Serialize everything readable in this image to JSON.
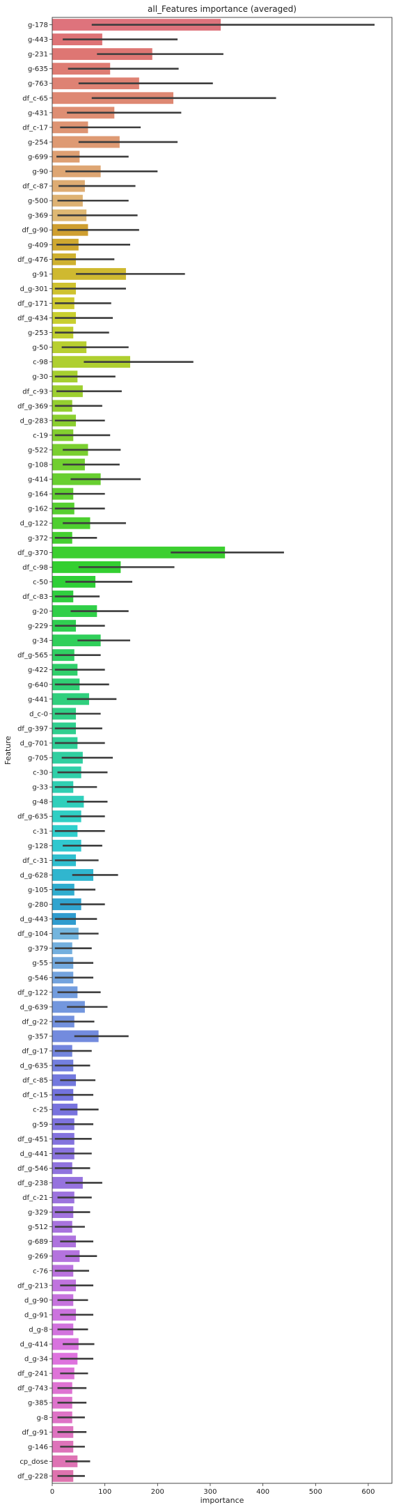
{
  "chart_data": {
    "type": "bar",
    "orientation": "horizontal",
    "title": "all_Features importance (averaged)",
    "xlabel": "importance",
    "ylabel": "Feature",
    "xlim": [
      0,
      645
    ],
    "xticks": [
      0,
      100,
      200,
      300,
      400,
      500,
      600
    ],
    "grid": false,
    "error_bars": true,
    "palette": "husl",
    "bars": [
      {
        "label": "g-178",
        "value": 320,
        "err_lo": 75,
        "err_hi": 612
      },
      {
        "label": "g-443",
        "value": 95,
        "err_lo": 20,
        "err_hi": 238
      },
      {
        "label": "g-231",
        "value": 190,
        "err_lo": 85,
        "err_hi": 325
      },
      {
        "label": "g-635",
        "value": 110,
        "err_lo": 30,
        "err_hi": 240
      },
      {
        "label": "g-763",
        "value": 165,
        "err_lo": 50,
        "err_hi": 305
      },
      {
        "label": "df_c-65",
        "value": 230,
        "err_lo": 75,
        "err_hi": 425
      },
      {
        "label": "g-431",
        "value": 118,
        "err_lo": 28,
        "err_hi": 245
      },
      {
        "label": "df_c-17",
        "value": 68,
        "err_lo": 15,
        "err_hi": 168
      },
      {
        "label": "g-254",
        "value": 128,
        "err_lo": 50,
        "err_hi": 238
      },
      {
        "label": "g-699",
        "value": 52,
        "err_lo": 8,
        "err_hi": 145
      },
      {
        "label": "g-90",
        "value": 92,
        "err_lo": 25,
        "err_hi": 200
      },
      {
        "label": "df_c-87",
        "value": 62,
        "err_lo": 12,
        "err_hi": 158
      },
      {
        "label": "g-500",
        "value": 58,
        "err_lo": 10,
        "err_hi": 145
      },
      {
        "label": "g-369",
        "value": 65,
        "err_lo": 10,
        "err_hi": 162
      },
      {
        "label": "df_g-90",
        "value": 68,
        "err_lo": 10,
        "err_hi": 165
      },
      {
        "label": "g-409",
        "value": 50,
        "err_lo": 8,
        "err_hi": 148
      },
      {
        "label": "df_g-476",
        "value": 45,
        "err_lo": 5,
        "err_hi": 118
      },
      {
        "label": "g-91",
        "value": 140,
        "err_lo": 45,
        "err_hi": 252
      },
      {
        "label": "d_g-301",
        "value": 45,
        "err_lo": 5,
        "err_hi": 140
      },
      {
        "label": "df_g-171",
        "value": 42,
        "err_lo": 5,
        "err_hi": 112
      },
      {
        "label": "df_g-434",
        "value": 45,
        "err_lo": 5,
        "err_hi": 115
      },
      {
        "label": "g-253",
        "value": 40,
        "err_lo": 5,
        "err_hi": 108
      },
      {
        "label": "g-50",
        "value": 65,
        "err_lo": 18,
        "err_hi": 145
      },
      {
        "label": "c-98",
        "value": 148,
        "err_lo": 60,
        "err_hi": 268
      },
      {
        "label": "g-30",
        "value": 48,
        "err_lo": 5,
        "err_hi": 120
      },
      {
        "label": "df_c-93",
        "value": 58,
        "err_lo": 8,
        "err_hi": 132
      },
      {
        "label": "df_g-369",
        "value": 38,
        "err_lo": 5,
        "err_hi": 95
      },
      {
        "label": "d_g-283",
        "value": 45,
        "err_lo": 5,
        "err_hi": 100
      },
      {
        "label": "c-19",
        "value": 40,
        "err_lo": 5,
        "err_hi": 110
      },
      {
        "label": "g-522",
        "value": 68,
        "err_lo": 20,
        "err_hi": 130
      },
      {
        "label": "g-108",
        "value": 62,
        "err_lo": 20,
        "err_hi": 128
      },
      {
        "label": "g-414",
        "value": 92,
        "err_lo": 35,
        "err_hi": 168
      },
      {
        "label": "g-164",
        "value": 40,
        "err_lo": 5,
        "err_hi": 100
      },
      {
        "label": "g-162",
        "value": 42,
        "err_lo": 5,
        "err_hi": 100
      },
      {
        "label": "d_g-122",
        "value": 72,
        "err_lo": 20,
        "err_hi": 140
      },
      {
        "label": "g-372",
        "value": 38,
        "err_lo": 5,
        "err_hi": 85
      },
      {
        "label": "df_g-370",
        "value": 328,
        "err_lo": 225,
        "err_hi": 440
      },
      {
        "label": "df_c-98",
        "value": 130,
        "err_lo": 50,
        "err_hi": 232
      },
      {
        "label": "c-50",
        "value": 82,
        "err_lo": 25,
        "err_hi": 152
      },
      {
        "label": "df_c-83",
        "value": 40,
        "err_lo": 5,
        "err_hi": 90
      },
      {
        "label": "g-20",
        "value": 85,
        "err_lo": 35,
        "err_hi": 145
      },
      {
        "label": "g-229",
        "value": 45,
        "err_lo": 5,
        "err_hi": 100
      },
      {
        "label": "g-34",
        "value": 92,
        "err_lo": 48,
        "err_hi": 148
      },
      {
        "label": "df_g-565",
        "value": 42,
        "err_lo": 5,
        "err_hi": 92
      },
      {
        "label": "g-422",
        "value": 48,
        "err_lo": 5,
        "err_hi": 100
      },
      {
        "label": "g-640",
        "value": 52,
        "err_lo": 5,
        "err_hi": 108
      },
      {
        "label": "g-441",
        "value": 70,
        "err_lo": 28,
        "err_hi": 122
      },
      {
        "label": "d_c-0",
        "value": 45,
        "err_lo": 5,
        "err_hi": 92
      },
      {
        "label": "df_g-397",
        "value": 45,
        "err_lo": 5,
        "err_hi": 95
      },
      {
        "label": "d_g-701",
        "value": 48,
        "err_lo": 5,
        "err_hi": 100
      },
      {
        "label": "g-705",
        "value": 58,
        "err_lo": 18,
        "err_hi": 115
      },
      {
        "label": "c-30",
        "value": 55,
        "err_lo": 10,
        "err_hi": 105
      },
      {
        "label": "g-33",
        "value": 40,
        "err_lo": 5,
        "err_hi": 85
      },
      {
        "label": "g-48",
        "value": 60,
        "err_lo": 28,
        "err_hi": 105
      },
      {
        "label": "df_g-635",
        "value": 55,
        "err_lo": 15,
        "err_hi": 100
      },
      {
        "label": "c-31",
        "value": 48,
        "err_lo": 5,
        "err_hi": 100
      },
      {
        "label": "g-128",
        "value": 55,
        "err_lo": 20,
        "err_hi": 95
      },
      {
        "label": "df_c-31",
        "value": 45,
        "err_lo": 5,
        "err_hi": 88
      },
      {
        "label": "d_g-628",
        "value": 78,
        "err_lo": 38,
        "err_hi": 125
      },
      {
        "label": "g-105",
        "value": 42,
        "err_lo": 5,
        "err_hi": 82
      },
      {
        "label": "g-280",
        "value": 55,
        "err_lo": 15,
        "err_hi": 100
      },
      {
        "label": "d_g-443",
        "value": 45,
        "err_lo": 5,
        "err_hi": 85
      },
      {
        "label": "df_g-104",
        "value": 50,
        "err_lo": 15,
        "err_hi": 88
      },
      {
        "label": "g-379",
        "value": 38,
        "err_lo": 5,
        "err_hi": 75
      },
      {
        "label": "g-55",
        "value": 40,
        "err_lo": 5,
        "err_hi": 78
      },
      {
        "label": "g-546",
        "value": 40,
        "err_lo": 5,
        "err_hi": 78
      },
      {
        "label": "df_g-122",
        "value": 48,
        "err_lo": 10,
        "err_hi": 92
      },
      {
        "label": "d_g-639",
        "value": 62,
        "err_lo": 28,
        "err_hi": 105
      },
      {
        "label": "df_g-22",
        "value": 42,
        "err_lo": 5,
        "err_hi": 80
      },
      {
        "label": "g-357",
        "value": 88,
        "err_lo": 42,
        "err_hi": 145
      },
      {
        "label": "df_g-17",
        "value": 38,
        "err_lo": 5,
        "err_hi": 75
      },
      {
        "label": "d_g-635",
        "value": 40,
        "err_lo": 5,
        "err_hi": 72
      },
      {
        "label": "df_c-85",
        "value": 45,
        "err_lo": 15,
        "err_hi": 82
      },
      {
        "label": "df_c-15",
        "value": 40,
        "err_lo": 5,
        "err_hi": 78
      },
      {
        "label": "c-25",
        "value": 48,
        "err_lo": 15,
        "err_hi": 88
      },
      {
        "label": "g-59",
        "value": 42,
        "err_lo": 5,
        "err_hi": 78
      },
      {
        "label": "df_g-451",
        "value": 42,
        "err_lo": 5,
        "err_hi": 75
      },
      {
        "label": "d_g-441",
        "value": 42,
        "err_lo": 5,
        "err_hi": 75
      },
      {
        "label": "df_g-546",
        "value": 38,
        "err_lo": 5,
        "err_hi": 72
      },
      {
        "label": "df_g-238",
        "value": 58,
        "err_lo": 25,
        "err_hi": 95
      },
      {
        "label": "df_c-21",
        "value": 42,
        "err_lo": 10,
        "err_hi": 75
      },
      {
        "label": "g-329",
        "value": 40,
        "err_lo": 5,
        "err_hi": 72
      },
      {
        "label": "g-512",
        "value": 38,
        "err_lo": 5,
        "err_hi": 62
      },
      {
        "label": "g-689",
        "value": 45,
        "err_lo": 15,
        "err_hi": 78
      },
      {
        "label": "g-269",
        "value": 52,
        "err_lo": 25,
        "err_hi": 85
      },
      {
        "label": "c-76",
        "value": 40,
        "err_lo": 5,
        "err_hi": 70
      },
      {
        "label": "df_g-213",
        "value": 45,
        "err_lo": 15,
        "err_hi": 78
      },
      {
        "label": "d_g-90",
        "value": 40,
        "err_lo": 10,
        "err_hi": 68
      },
      {
        "label": "d_g-91",
        "value": 45,
        "err_lo": 15,
        "err_hi": 78
      },
      {
        "label": "d_g-8",
        "value": 40,
        "err_lo": 10,
        "err_hi": 68
      },
      {
        "label": "d_g-414",
        "value": 50,
        "err_lo": 20,
        "err_hi": 80
      },
      {
        "label": "d_g-34",
        "value": 48,
        "err_lo": 15,
        "err_hi": 78
      },
      {
        "label": "df_g-241",
        "value": 42,
        "err_lo": 15,
        "err_hi": 68
      },
      {
        "label": "df_g-743",
        "value": 38,
        "err_lo": 10,
        "err_hi": 65
      },
      {
        "label": "g-385",
        "value": 38,
        "err_lo": 10,
        "err_hi": 65
      },
      {
        "label": "g-8",
        "value": 38,
        "err_lo": 10,
        "err_hi": 62
      },
      {
        "label": "df_g-91",
        "value": 40,
        "err_lo": 10,
        "err_hi": 65
      },
      {
        "label": "g-146",
        "value": 40,
        "err_lo": 15,
        "err_hi": 62
      },
      {
        "label": "cp_dose",
        "value": 48,
        "err_lo": 25,
        "err_hi": 72
      },
      {
        "label": "df_g-228",
        "value": 40,
        "err_lo": 10,
        "err_hi": 62
      }
    ]
  }
}
